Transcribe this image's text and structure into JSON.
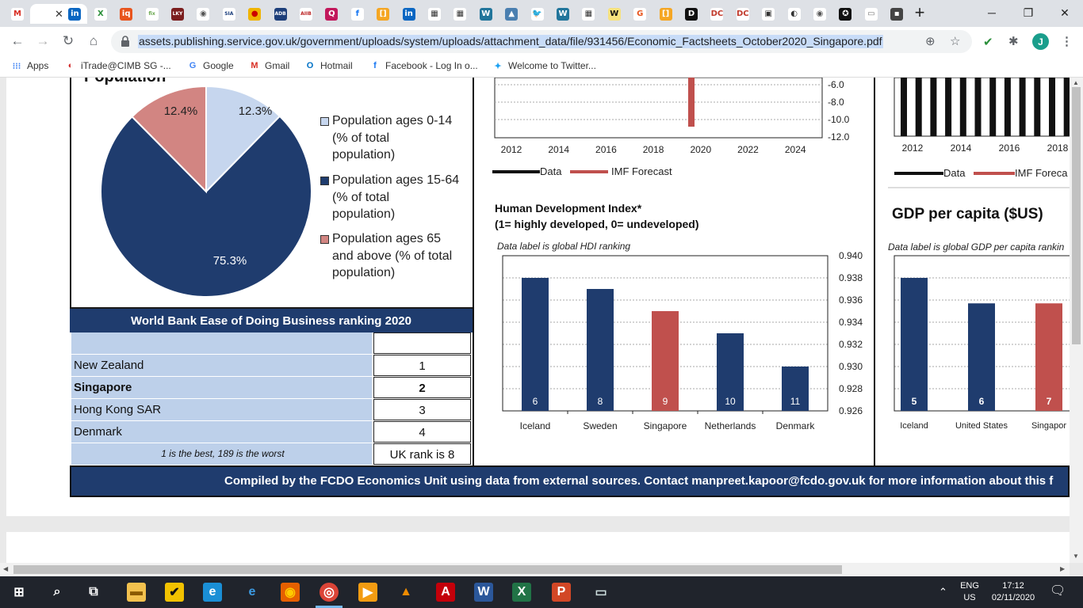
{
  "browser": {
    "tabs": [
      {
        "icon": "gmail-icon",
        "letter": "M",
        "color": "#ffffff",
        "fg": "#d93025"
      },
      {
        "icon": "active-tab-icon",
        "letter": "",
        "color": "#ffffff",
        "fg": "#333"
      },
      {
        "icon": "linkedin-icon",
        "letter": "in",
        "color": "#0a66c2",
        "fg": "#fff"
      },
      {
        "icon": "app-icon",
        "letter": "X",
        "color": "#ffffff",
        "fg": "#2a8f3a"
      },
      {
        "icon": "iq-icon",
        "letter": "iq",
        "color": "#e8541d",
        "fg": "#fff"
      },
      {
        "icon": "fix-icon",
        "letter": "fix",
        "color": "#ffffff",
        "fg": "#6aa84f"
      },
      {
        "icon": "lky-icon",
        "letter": "LKY",
        "color": "#7b1e1e",
        "fg": "#fff"
      },
      {
        "icon": "globe-icon",
        "letter": "◉",
        "color": "#ffffff",
        "fg": "#555"
      },
      {
        "icon": "sia-icon",
        "letter": "SIA",
        "color": "#ffffff",
        "fg": "#1a3d7c"
      },
      {
        "icon": "asean-icon",
        "letter": "●",
        "color": "#f0b400",
        "fg": "#c00"
      },
      {
        "icon": "adb-icon",
        "letter": "ADB",
        "color": "#1d3f7a",
        "fg": "#fff"
      },
      {
        "icon": "aiib-icon",
        "letter": "AIIB",
        "color": "#ffffff",
        "fg": "#b22"
      },
      {
        "icon": "q-icon",
        "letter": "Q",
        "color": "#c2185b",
        "fg": "#fff"
      },
      {
        "icon": "facebook-icon",
        "letter": "f",
        "color": "#ffffff",
        "fg": "#1877f2"
      },
      {
        "icon": "bracket-icon",
        "letter": "[]",
        "color": "#f5a623",
        "fg": "#fff"
      },
      {
        "icon": "linkedin-icon",
        "letter": "in",
        "color": "#0a66c2",
        "fg": "#fff"
      },
      {
        "icon": "building-icon",
        "letter": "▦",
        "color": "#ffffff",
        "fg": "#333"
      },
      {
        "icon": "building-icon",
        "letter": "▦",
        "color": "#ffffff",
        "fg": "#333"
      },
      {
        "icon": "wordpress-icon",
        "letter": "W",
        "color": "#21759b",
        "fg": "#fff"
      },
      {
        "icon": "photo-icon",
        "letter": "▲",
        "color": "#4a7fb0",
        "fg": "#fff"
      },
      {
        "icon": "twitter-icon",
        "letter": "🐦",
        "color": "#ffffff",
        "fg": "#1da1f2"
      },
      {
        "icon": "wordpress-icon",
        "letter": "W",
        "color": "#21759b",
        "fg": "#fff"
      },
      {
        "icon": "building-icon",
        "letter": "▦",
        "color": "#ffffff",
        "fg": "#333"
      },
      {
        "icon": "w-icon",
        "letter": "W",
        "color": "#f7e27e",
        "fg": "#111"
      },
      {
        "icon": "g-icon",
        "letter": "G",
        "color": "#ffffff",
        "fg": "#e8541d"
      },
      {
        "icon": "bracket-icon",
        "letter": "[]",
        "color": "#f5a623",
        "fg": "#fff"
      },
      {
        "icon": "d-icon",
        "letter": "D",
        "color": "#111111",
        "fg": "#fff"
      },
      {
        "icon": "dc-icon",
        "letter": "DC",
        "color": "#ffffff",
        "fg": "#c0392b"
      },
      {
        "icon": "dc-icon",
        "letter": "DC",
        "color": "#ffffff",
        "fg": "#c0392b"
      },
      {
        "icon": "frame-icon",
        "letter": "▣",
        "color": "#ffffff",
        "fg": "#333"
      },
      {
        "icon": "cd-icon",
        "letter": "◐",
        "color": "#ffffff",
        "fg": "#333"
      },
      {
        "icon": "globe-icon",
        "letter": "◉",
        "color": "#ffffff",
        "fg": "#555"
      },
      {
        "icon": "nyt-icon",
        "letter": "✪",
        "color": "#111111",
        "fg": "#fff"
      },
      {
        "icon": "doc-icon",
        "letter": "▭",
        "color": "#ffffff",
        "fg": "#777"
      },
      {
        "icon": "dark-icon",
        "letter": "▪",
        "color": "#444444",
        "fg": "#fff"
      }
    ],
    "url": "assets.publishing.service.gov.uk/government/uploads/system/uploads/attachment_data/file/931456/Economic_Factsheets_October2020_Singapore.pdf",
    "profile_letter": "J",
    "bookmarks": [
      {
        "label": "Apps",
        "icon": "apps-icon"
      },
      {
        "label": "iTrade@CIMB SG -...",
        "icon": "itrade-icon"
      },
      {
        "label": "Google",
        "icon": "google-icon"
      },
      {
        "label": "Gmail",
        "icon": "gmail-icon"
      },
      {
        "label": "Hotmail",
        "icon": "outlook-icon"
      },
      {
        "label": "Facebook - Log In o...",
        "icon": "facebook-icon"
      },
      {
        "label": "Welcome to Twitter...",
        "icon": "twitter-icon"
      }
    ]
  },
  "population": {
    "title": "Population",
    "slices": [
      {
        "name": "Population ages 0-14 (% of total population)",
        "value": 12.3,
        "label": "12.3%",
        "color": "#c6d6ee"
      },
      {
        "name": "Population ages 15-64 (% of total population)",
        "value": 75.3,
        "label": "75.3%",
        "color": "#1f3c6e"
      },
      {
        "name": "Population ages 65 and above (% of total population)",
        "value": 12.4,
        "label": "12.4%",
        "color": "#d28582"
      }
    ],
    "legend": [
      {
        "lines": [
          "Population ages 0-14",
          "(% of total",
          "population)"
        ]
      },
      {
        "lines": [
          "Population ages 15-64",
          "(% of total",
          "population)"
        ]
      },
      {
        "lines": [
          "Population ages 65",
          "and above (% of total",
          "population)"
        ]
      }
    ]
  },
  "ease_of_business": {
    "title": "World Bank Ease of Doing Business ranking 2020",
    "rows": [
      {
        "country": "New Zealand",
        "rank": "1",
        "bold": false
      },
      {
        "country": "Singapore",
        "rank": "2",
        "bold": true
      },
      {
        "country": "Hong Kong SAR",
        "rank": "3",
        "bold": false
      },
      {
        "country": "Denmark",
        "rank": "4",
        "bold": false
      }
    ],
    "note": "1 is the best, 189 is the worst",
    "uk_rank": "UK rank is 8"
  },
  "growth_chart_partial": {
    "y_ticks": [
      "-6.0",
      "-8.0",
      "-10.0",
      "-12.0"
    ],
    "x_ticks": [
      "2012",
      "2014",
      "2016",
      "2018",
      "2020",
      "2022",
      "2024"
    ],
    "legend_data": "Data",
    "legend_forecast": "IMF Forecast"
  },
  "chart_data": [
    {
      "type": "bar",
      "title": "Human Development Index*",
      "subtitle": "(1= highly developed, 0= undeveloped)",
      "note": "Data label is global HDI ranking",
      "categories": [
        "Iceland",
        "Sweden",
        "Singapore",
        "Netherlands",
        "Denmark"
      ],
      "values": [
        0.938,
        0.937,
        0.935,
        0.933,
        0.93
      ],
      "data_labels": [
        "6",
        "8",
        "9",
        "10",
        "11"
      ],
      "highlight": "Singapore",
      "ylim": [
        0.926,
        0.94
      ],
      "y_ticks": [
        "0.940",
        "0.938",
        "0.936",
        "0.934",
        "0.932",
        "0.930",
        "0.928",
        "0.926"
      ],
      "colors": {
        "bar": "#1f3c6e",
        "highlight": "#c0504d"
      },
      "grid": true
    },
    {
      "type": "bar",
      "title": "GDP per capita ($US)",
      "note": "Data label is global GDP per capita rankin",
      "categories": [
        "Iceland",
        "United States",
        "Singapor"
      ],
      "values": [
        0.938,
        0.9357,
        0.9357
      ],
      "data_labels": [
        "5",
        "6",
        "7"
      ],
      "highlight": "Singapor",
      "colors": {
        "bar": "#1f3c6e",
        "highlight": "#c0504d"
      },
      "partial_x_ticks": [
        "2012",
        "2014",
        "2016",
        "2018"
      ],
      "legend_data": "Data",
      "legend_forecast": "IMF Foreca"
    }
  ],
  "footer": "Compiled by the FCDO Economics Unit using data from external sources. Contact manpreet.kapoor@fcdo.gov.uk for more information about this f",
  "taskbar": {
    "lang": "ENG",
    "region": "US",
    "time": "17:12",
    "date": "02/11/2020",
    "apps": [
      "start-icon",
      "search-icon",
      "task-view-icon",
      "file-explorer-icon",
      "norton-icon",
      "edge-icon",
      "ie-icon",
      "firefox-icon",
      "chrome-icon",
      "media-player-icon",
      "vlc-icon",
      "acrobat-icon",
      "word-icon",
      "excel-icon",
      "powerpoint-icon",
      "pc-icon"
    ]
  }
}
